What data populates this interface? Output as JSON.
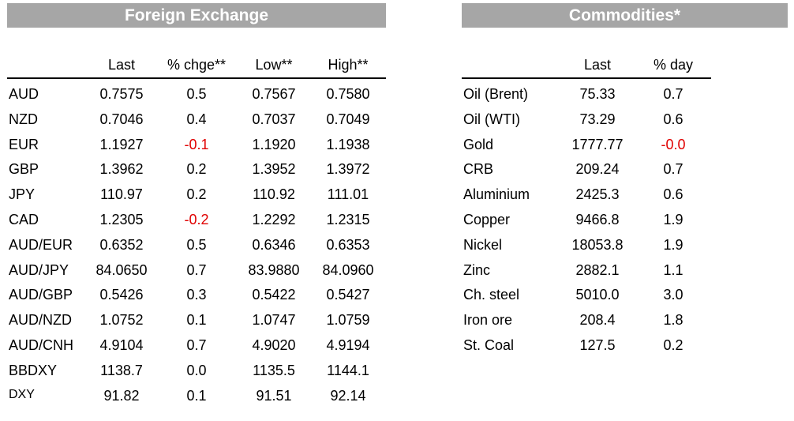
{
  "fx": {
    "title": "Foreign Exchange",
    "headers": [
      "",
      "Last",
      "% chge**",
      "Low**",
      "High**"
    ],
    "rows": [
      {
        "name": "AUD",
        "last": "0.7575",
        "chg": "0.5",
        "low": "0.7567",
        "high": "0.7580"
      },
      {
        "name": "NZD",
        "last": "0.7046",
        "chg": "0.4",
        "low": "0.7037",
        "high": "0.7049"
      },
      {
        "name": "EUR",
        "last": "1.1927",
        "chg": "-0.1",
        "low": "1.1920",
        "high": "1.1938"
      },
      {
        "name": "GBP",
        "last": "1.3962",
        "chg": "0.2",
        "low": "1.3952",
        "high": "1.3972"
      },
      {
        "name": "JPY",
        "last": "110.97",
        "chg": "0.2",
        "low": "110.92",
        "high": "111.01"
      },
      {
        "name": "CAD",
        "last": "1.2305",
        "chg": "-0.2",
        "low": "1.2292",
        "high": "1.2315"
      },
      {
        "name": "AUD/EUR",
        "last": "0.6352",
        "chg": "0.5",
        "low": "0.6346",
        "high": "0.6353"
      },
      {
        "name": "AUD/JPY",
        "last": "84.0650",
        "chg": "0.7",
        "low": "83.9880",
        "high": "84.0960"
      },
      {
        "name": "AUD/GBP",
        "last": "0.5426",
        "chg": "0.3",
        "low": "0.5422",
        "high": "0.5427"
      },
      {
        "name": "AUD/NZD",
        "last": "1.0752",
        "chg": "0.1",
        "low": "1.0747",
        "high": "1.0759"
      },
      {
        "name": "AUD/CNH",
        "last": "4.9104",
        "chg": "0.7",
        "low": "4.9020",
        "high": "4.9194"
      },
      {
        "name": "BBDXY",
        "last": "1138.7",
        "chg": "0.0",
        "low": "1135.5",
        "high": "1144.1"
      },
      {
        "name": "DXY",
        "last": "91.82",
        "chg": "0.1",
        "low": "91.51",
        "high": "92.14"
      }
    ]
  },
  "commodities": {
    "title": "Commodities*",
    "headers": [
      "",
      "Last",
      "% day"
    ],
    "rows": [
      {
        "name": "Oil (Brent)",
        "last": "75.33",
        "day": "0.7"
      },
      {
        "name": "Oil (WTI)",
        "last": "73.29",
        "day": "0.6"
      },
      {
        "name": "Gold",
        "last": "1777.77",
        "day": "-0.0"
      },
      {
        "name": "CRB",
        "last": "209.24",
        "day": "0.7"
      },
      {
        "name": "Aluminium",
        "last": "2425.3",
        "day": "0.6"
      },
      {
        "name": "Copper",
        "last": "9466.8",
        "day": "1.9"
      },
      {
        "name": "Nickel",
        "last": "18053.8",
        "day": "1.9"
      },
      {
        "name": "Zinc",
        "last": "2882.1",
        "day": "1.1"
      },
      {
        "name": "Ch. steel",
        "last": "5010.0",
        "day": "3.0"
      },
      {
        "name": "Iron ore",
        "last": "208.4",
        "day": "1.8"
      },
      {
        "name": "St. Coal",
        "last": "127.5",
        "day": "0.2"
      }
    ]
  },
  "colors": {
    "header_bg": "#a6a6a6",
    "header_text": "#ffffff",
    "negative": "#e00000"
  }
}
